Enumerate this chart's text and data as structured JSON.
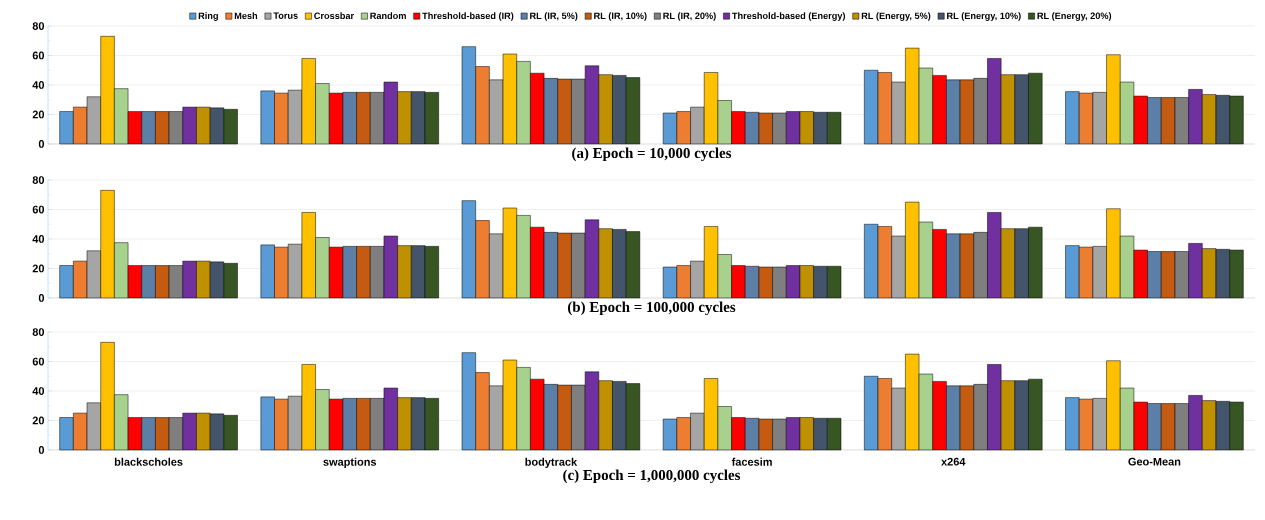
{
  "chart_data": [
    {
      "type": "bar",
      "title": "(a) Epoch = 10,000 cycles",
      "categories": [
        null,
        null,
        null,
        null,
        null,
        null
      ],
      "ylim": [
        0,
        80
      ],
      "yticks": [
        0,
        20,
        40,
        60,
        80
      ],
      "grid": "y",
      "legend": "top",
      "tick_labels": "y",
      "series": [
        {
          "name": "Ring",
          "color": "#5b9bd5",
          "values": [
            22,
            36,
            66,
            21,
            50,
            35.5
          ]
        },
        {
          "name": "Mesh",
          "color": "#ed7d31",
          "values": [
            25,
            34.5,
            52.5,
            22,
            48.5,
            34.5
          ]
        },
        {
          "name": "Torus",
          "color": "#a5a5a5",
          "values": [
            32,
            36.5,
            43.5,
            25,
            42,
            35
          ]
        },
        {
          "name": "Crossbar",
          "color": "#ffc000",
          "values": [
            73,
            58,
            61,
            48.5,
            65,
            60.5
          ]
        },
        {
          "name": "Random",
          "color": "#a9d18e",
          "values": [
            37.5,
            41,
            56,
            29.5,
            51.5,
            42
          ]
        },
        {
          "name": "Threshold-based (IR)",
          "color": "#ff0000",
          "values": [
            22,
            34.5,
            48,
            22,
            46.5,
            32.5
          ]
        },
        {
          "name": "RL (IR, 5%)",
          "color": "#5b7fa6",
          "values": [
            22,
            35,
            44.5,
            21.5,
            43.5,
            31.5
          ]
        },
        {
          "name": "RL (IR, 10%)",
          "color": "#c55a11",
          "values": [
            22,
            35,
            44,
            21,
            43.5,
            31.5
          ]
        },
        {
          "name": "RL (IR, 20%)",
          "color": "#7f7f7f",
          "values": [
            22,
            35,
            44,
            21,
            44.5,
            31.5
          ]
        },
        {
          "name": "Threshold-based (Energy)",
          "color": "#7030a0",
          "values": [
            25,
            42,
            53,
            22,
            58,
            37
          ]
        },
        {
          "name": "RL (Energy, 5%)",
          "color": "#bf9000",
          "values": [
            25,
            35.5,
            47,
            22,
            47,
            33.5
          ]
        },
        {
          "name": "RL (Energy, 10%)",
          "color": "#44546a",
          "values": [
            24.5,
            35.5,
            46.5,
            21.5,
            47,
            33
          ]
        },
        {
          "name": "RL (Energy, 20%)",
          "color": "#375623",
          "values": [
            23.5,
            35,
            45,
            21.5,
            48,
            32.5
          ]
        }
      ]
    },
    {
      "type": "bar",
      "title": "(b) Epoch = 100,000 cycles",
      "categories": [
        null,
        null,
        null,
        null,
        null,
        null
      ],
      "ylim": [
        0,
        80
      ],
      "yticks": [
        0,
        20,
        40,
        60,
        80
      ],
      "grid": "y",
      "tick_labels": "y",
      "series": [
        {
          "color": "#5b9bd5",
          "values": [
            22,
            36,
            66,
            21,
            50,
            35.5
          ]
        },
        {
          "color": "#ed7d31",
          "values": [
            25,
            34.5,
            52.5,
            22,
            48.5,
            34.5
          ]
        },
        {
          "color": "#a5a5a5",
          "values": [
            32,
            36.5,
            43.5,
            25,
            42,
            35
          ]
        },
        {
          "color": "#ffc000",
          "values": [
            73,
            58,
            61,
            48.5,
            65,
            60.5
          ]
        },
        {
          "color": "#a9d18e",
          "values": [
            37.5,
            41,
            56,
            29.5,
            51.5,
            42
          ]
        },
        {
          "color": "#ff0000",
          "values": [
            22,
            34.5,
            48,
            22,
            46.5,
            32.5
          ]
        },
        {
          "color": "#5b7fa6",
          "values": [
            22,
            35,
            44.5,
            21.5,
            43.5,
            31.5
          ]
        },
        {
          "color": "#c55a11",
          "values": [
            22,
            35,
            44,
            21,
            43.5,
            31.5
          ]
        },
        {
          "color": "#7f7f7f",
          "values": [
            22,
            35,
            44,
            21,
            44.5,
            31.5
          ]
        },
        {
          "color": "#7030a0",
          "values": [
            25,
            42,
            53,
            22,
            58,
            37
          ]
        },
        {
          "color": "#bf9000",
          "values": [
            25,
            35.5,
            47,
            22,
            47,
            33.5
          ]
        },
        {
          "color": "#44546a",
          "values": [
            24.5,
            35.5,
            46.5,
            21.5,
            47,
            33
          ]
        },
        {
          "color": "#375623",
          "values": [
            23.5,
            35,
            45,
            21.5,
            48,
            32.5
          ]
        }
      ]
    },
    {
      "type": "bar",
      "title": "(c) Epoch = 1,000,000 cycles",
      "categories": [
        "blackscholes",
        "swaptions",
        "bodytrack",
        "facesim",
        "x264",
        "Geo-Mean"
      ],
      "ylim": [
        0,
        80
      ],
      "yticks": [
        0,
        20,
        40,
        60,
        80
      ],
      "grid": "y",
      "series": [
        {
          "color": "#5b9bd5",
          "values": [
            22,
            36,
            66,
            21,
            50,
            35.5
          ]
        },
        {
          "color": "#ed7d31",
          "values": [
            25,
            34.5,
            52.5,
            22,
            48.5,
            34.5
          ]
        },
        {
          "color": "#a5a5a5",
          "values": [
            32,
            36.5,
            43.5,
            25,
            42,
            35
          ]
        },
        {
          "color": "#ffc000",
          "values": [
            73,
            58,
            61,
            48.5,
            65,
            60.5
          ]
        },
        {
          "color": "#a9d18e",
          "values": [
            37.5,
            41,
            56,
            29.5,
            51.5,
            42
          ]
        },
        {
          "color": "#ff0000",
          "values": [
            22,
            34.5,
            48,
            22,
            46.5,
            32.5
          ]
        },
        {
          "color": "#5b7fa6",
          "values": [
            22,
            35,
            44.5,
            21.5,
            43.5,
            31.5
          ]
        },
        {
          "color": "#c55a11",
          "values": [
            22,
            35,
            44,
            21,
            43.5,
            31.5
          ]
        },
        {
          "color": "#7f7f7f",
          "values": [
            22,
            35,
            44,
            21,
            44.5,
            31.5
          ]
        },
        {
          "color": "#7030a0",
          "values": [
            25,
            42,
            53,
            22,
            58,
            37
          ]
        },
        {
          "color": "#bf9000",
          "values": [
            25,
            35.5,
            47,
            22,
            47,
            33.5
          ]
        },
        {
          "color": "#44546a",
          "values": [
            24.5,
            35.5,
            46.5,
            21.5,
            47,
            33
          ]
        },
        {
          "color": "#375623",
          "values": [
            23.5,
            35,
            45,
            21.5,
            48,
            32.5
          ]
        }
      ]
    }
  ]
}
